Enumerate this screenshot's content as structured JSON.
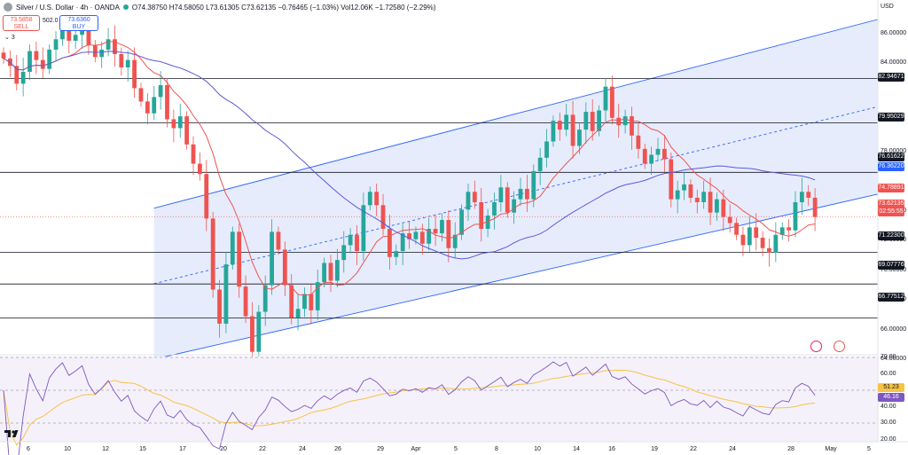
{
  "header": {
    "symbol": "Silver / U.S. Dollar · 4h · OANDA",
    "ohlc": "O74.38750 H74.58050 L73.61305 C73.62135 −0.76465 (−1.03%) Vol12.06K −1.72580 (−2.29%)",
    "sell_price": "73.5858",
    "sell_label": "SELL",
    "spread": "502.0",
    "buy_price": "73.6360",
    "buy_label": "BUY",
    "indicator_count": "3"
  },
  "axis": {
    "currency": "USD",
    "price_ticks": [
      "86.00000",
      "84.00000",
      "78.00000",
      "74.00000",
      "72.00000",
      "70.00000",
      "68.00000",
      "66.00000",
      "64.00000"
    ],
    "rsi_ticks": [
      "70.00",
      "60.00",
      "40.00",
      "30.00",
      "20.00"
    ],
    "x_ticks": [
      "6",
      "10",
      "12",
      "15",
      "17",
      "20",
      "22",
      "24",
      "26",
      "29",
      "Apr",
      "5",
      "8",
      "10",
      "14",
      "16",
      "19",
      "22",
      "24",
      "28",
      "May",
      "5",
      "7"
    ]
  },
  "levels": {
    "horizontal": [
      "82.94671",
      "79.95029",
      "76.61622",
      "71.22300",
      "69.07776",
      "66.77512"
    ],
    "ma_blue": "76.36220",
    "ma_red": "74.78891",
    "last_price": "73.62135",
    "countdown": "02:55:55",
    "rsi_a": "51.23",
    "rsi_b": "46.16"
  },
  "colors": {
    "up": "#26a69a",
    "down": "#ef5350",
    "ma_red": "#ef5350",
    "ma_blue": "#5b5bd6",
    "channel": "#2962ff",
    "channel_fill": "#dde6fb",
    "rsi": "#7e57c2",
    "rsi_ma": "#f6c344"
  },
  "chart_data": {
    "type": "candlestick",
    "symbol": "Silver / U.S. Dollar · 4h · OANDA",
    "ylim": [
      63,
      88
    ],
    "horizontal_levels": [
      82.94671,
      79.95029,
      76.61622,
      71.223,
      69.07776,
      66.77512
    ],
    "channel": {
      "upper": [
        [
          0,
          74.2
        ],
        [
          125,
          88.6
        ]
      ],
      "lower": [
        [
          0,
          64.0
        ],
        [
          125,
          76.6
        ]
      ],
      "mid": [
        [
          0,
          69.1
        ],
        [
          125,
          82.6
        ]
      ],
      "start_index": 23
    },
    "close": [
      84.3,
      83.8,
      82.6,
      83.4,
      84.8,
      84.2,
      83.6,
      84.9,
      85.6,
      86.2,
      85.5,
      85.9,
      86.4,
      85.2,
      84.4,
      84.9,
      85.6,
      84.6,
      83.7,
      84.2,
      82.3,
      81.4,
      80.6,
      81.7,
      82.5,
      80.2,
      79.6,
      80.4,
      78.5,
      77.2,
      76.5,
      73.5,
      68.7,
      66.4,
      70.4,
      72.6,
      68.9,
      66.9,
      64.5,
      67.2,
      69.0,
      72.6,
      71.4,
      69.0,
      66.8,
      67.4,
      68.4,
      67.3,
      69.2,
      70.5,
      69.3,
      70.7,
      71.7,
      72.4,
      71.3,
      74.4,
      75.3,
      74.4,
      72.8,
      70.9,
      71.3,
      72.5,
      72.1,
      72.6,
      71.8,
      72.8,
      72.5,
      73.4,
      71.5,
      72.4,
      74.1,
      75.3,
      74.6,
      72.8,
      73.7,
      74.6,
      75.6,
      73.9,
      74.8,
      75.5,
      74.8,
      76.7,
      77.6,
      78.7,
      80.1,
      79.5,
      80.5,
      78.4,
      79.5,
      80.7,
      79.4,
      80.8,
      82.4,
      80.3,
      79.8,
      80.4,
      79.1,
      78.2,
      77.2,
      77.8,
      78.2,
      77.5,
      74.8,
      75.4,
      75.8,
      74.9,
      74.6,
      75.3,
      73.9,
      74.8,
      73.6,
      73.2,
      72.4,
      71.7,
      72.9,
      72.2,
      71.5,
      71.2,
      72.4,
      72.9,
      72.7,
      74.6,
      75.3,
      74.9,
      73.6
    ],
    "ma_red": "faster moving average",
    "ma_blue": "slower moving average",
    "rsi": {
      "levels": [
        70,
        30
      ],
      "last": 46.16,
      "ma_last": 51.23
    }
  }
}
